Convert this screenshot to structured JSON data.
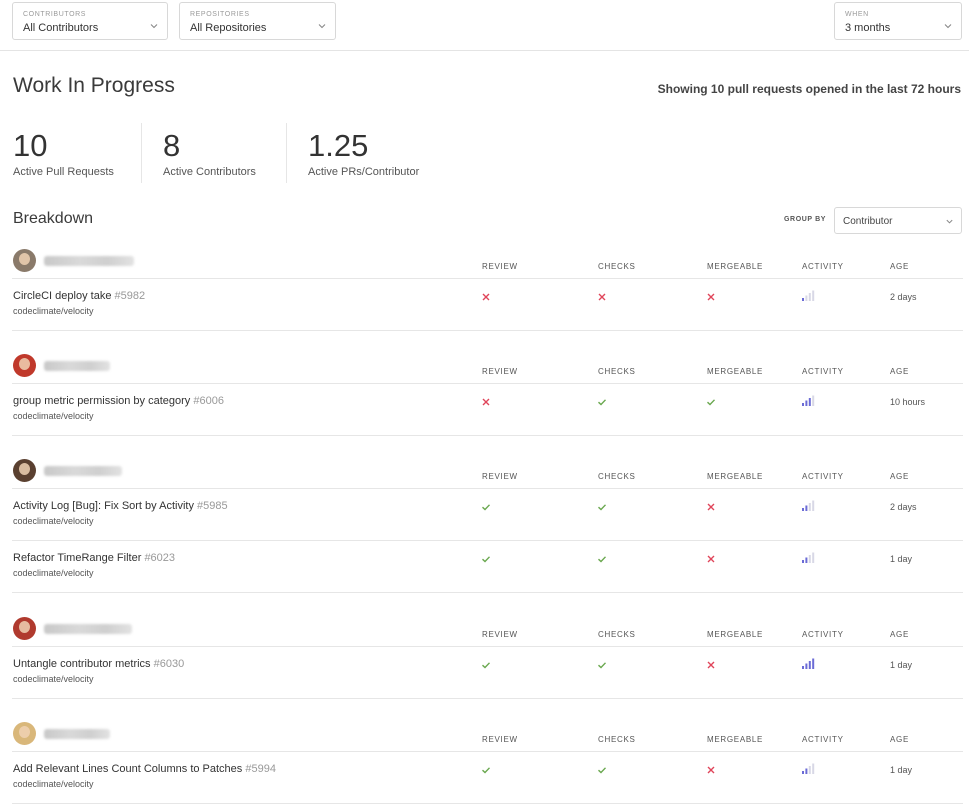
{
  "filters": {
    "contributors": {
      "label": "CONTRIBUTORS",
      "value": "All Contributors"
    },
    "repositories": {
      "label": "REPOSITORIES",
      "value": "All Repositories"
    },
    "when": {
      "label": "WHEN",
      "value": "3 months"
    }
  },
  "header": {
    "title": "Work In Progress",
    "showing": "Showing 10 pull requests opened in the last 72 hours"
  },
  "stats": [
    {
      "value": "10",
      "label": "Active Pull Requests"
    },
    {
      "value": "8",
      "label": "Active Contributors"
    },
    {
      "value": "1.25",
      "label": "Active PRs/Contributor"
    }
  ],
  "breakdown": {
    "title": "Breakdown",
    "group_by_label": "GROUP BY",
    "group_by_value": "Contributor"
  },
  "columns": {
    "review": "REVIEW",
    "checks": "CHECKS",
    "mergeable": "MERGEABLE",
    "activity": "ACTIVITY",
    "age": "AGE"
  },
  "colors": {
    "pass": "#6aa84f",
    "fail": "#e0455a",
    "activity_on": "#6b6bd6",
    "activity_off": "#d8d8e6"
  },
  "groups": [
    {
      "avatar_color": "#8a7a6a",
      "prs": [
        {
          "title": "CircleCI deploy take",
          "number": "#5982",
          "repo": "codeclimate/velocity",
          "review": "fail",
          "checks": "fail",
          "mergeable": "fail",
          "activity_level": 1,
          "age": "2 days"
        }
      ]
    },
    {
      "avatar_color": "#c0392b",
      "prs": [
        {
          "title": "group metric permission by category",
          "number": "#6006",
          "repo": "codeclimate/velocity",
          "review": "fail",
          "checks": "pass",
          "mergeable": "pass",
          "activity_level": 3,
          "age": "10 hours"
        }
      ]
    },
    {
      "avatar_color": "#5a4030",
      "prs": [
        {
          "title": "Activity Log [Bug]: Fix Sort by Activity",
          "number": "#5985",
          "repo": "codeclimate/velocity",
          "review": "pass",
          "checks": "pass",
          "mergeable": "fail",
          "activity_level": 2,
          "age": "2 days"
        },
        {
          "title": "Refactor TimeRange Filter",
          "number": "#6023",
          "repo": "codeclimate/velocity",
          "review": "pass",
          "checks": "pass",
          "mergeable": "fail",
          "activity_level": 2,
          "age": "1 day"
        }
      ]
    },
    {
      "avatar_color": "#b03a2e",
      "prs": [
        {
          "title": "Untangle contributor metrics",
          "number": "#6030",
          "repo": "codeclimate/velocity",
          "review": "pass",
          "checks": "pass",
          "mergeable": "fail",
          "activity_level": 4,
          "age": "1 day"
        }
      ]
    },
    {
      "avatar_color": "#d9b77a",
      "prs": [
        {
          "title": "Add Relevant Lines Count Columns to Patches",
          "number": "#5994",
          "repo": "codeclimate/velocity",
          "review": "pass",
          "checks": "pass",
          "mergeable": "fail",
          "activity_level": 2,
          "age": "1 day"
        }
      ]
    }
  ]
}
